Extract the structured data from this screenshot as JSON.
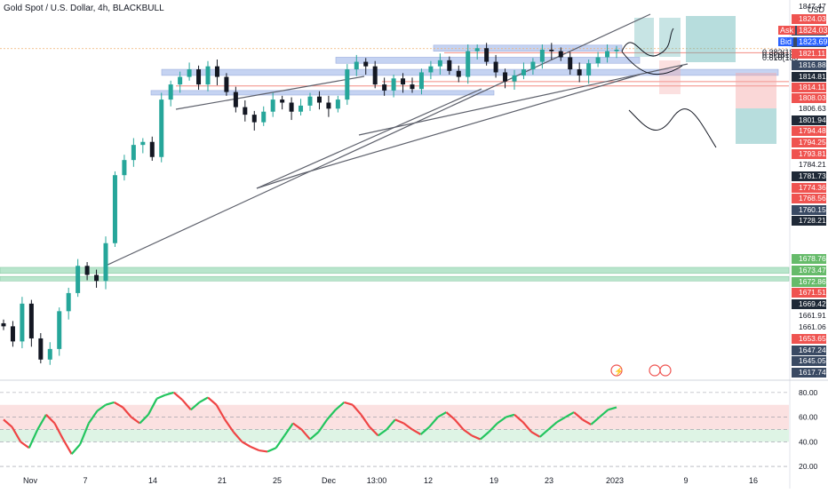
{
  "header": {
    "symbol_title": "Gold Spot / U.S. Dollar, 4h, BLACKBULL",
    "currency": "USD",
    "ask_label": "Ask",
    "ask_value": "1824.03",
    "bid_label": "Bid",
    "bid_value": "1823.69"
  },
  "colors": {
    "up": "#26a69a",
    "down": "#131722",
    "rsi_up": "#22c55e",
    "rsi_down": "#ef4444",
    "support_band": "#7fd1a3",
    "blue_band": "#9fb6ea",
    "red_line": "#f28b82",
    "channel_line": "#5d606b"
  },
  "chart_data": [
    {
      "type": "candlestick",
      "title": "Gold Spot / U.S. Dollar, 4h, BLACKBULL",
      "x_ticks": [
        "Nov",
        "7",
        "14",
        "21",
        "25",
        "Dec",
        "13:00",
        "12",
        "19",
        "23",
        "2023",
        "9",
        "16"
      ],
      "price_axis_labels": [
        "1847.47",
        "1824.03",
        "1823.69",
        "1823.69",
        "1821.11",
        "1816.88",
        "1814.81",
        "1814.11",
        "1808.03",
        "1806.63",
        "1801.94",
        "1794.48",
        "1794.25",
        "1793.81",
        "1784.21",
        "1781.73",
        "1774.36",
        "1768.56",
        "1760.15",
        "1728.21",
        "1678.76",
        "1673.47",
        "1672.86",
        "1671.51",
        "1669.42",
        "1661.91",
        "1661.06",
        "1653.65",
        "1647.24",
        "1645.05",
        "1617.74"
      ],
      "fib_labels": [
        "0.382(181",
        "0.5(181",
        "0.618(180"
      ],
      "close_path": [
        1640,
        1630,
        1655,
        1632,
        1618,
        1625,
        1650,
        1662,
        1680,
        1674,
        1670,
        1695,
        1740,
        1750,
        1760,
        1762,
        1752,
        1790,
        1800,
        1805,
        1810,
        1800,
        1812,
        1805,
        1795,
        1785,
        1780,
        1775,
        1782,
        1790,
        1788,
        1782,
        1786,
        1792,
        1788,
        1784,
        1790,
        1810,
        1815,
        1812,
        1800,
        1796,
        1804,
        1800,
        1797,
        1808,
        1812,
        1816,
        1809,
        1805,
        1822,
        1824,
        1815,
        1808,
        1802,
        1806,
        1810,
        1815,
        1823,
        1822,
        1818,
        1810,
        1806,
        1814,
        1818,
        1822,
        1823
      ],
      "levels": [
        1678.76,
        1672.86,
        1801.94,
        1794.48,
        1806.63,
        1808.03,
        1816.88,
        1821.11,
        1824.03
      ]
    },
    {
      "type": "line",
      "title": "",
      "y_ticks": [
        "80.00",
        "60.00",
        "40.00",
        "20.00"
      ],
      "ylim": [
        15,
        90
      ],
      "series": [
        {
          "values": [
            58,
            52,
            40,
            35,
            50,
            62,
            55,
            42,
            30,
            38,
            55,
            65,
            70,
            72,
            68,
            60,
            55,
            62,
            75,
            78,
            80,
            74,
            66,
            72,
            76,
            70,
            58,
            48,
            40,
            36,
            33,
            32,
            35,
            45,
            55,
            50,
            42,
            48,
            58,
            66,
            72,
            70,
            62,
            52,
            45,
            50,
            58,
            55,
            50,
            46,
            52,
            60,
            64,
            58,
            50,
            45,
            42,
            48,
            55,
            60,
            62,
            56,
            48,
            44,
            50,
            56,
            60,
            64,
            58,
            54,
            60,
            66,
            68
          ]
        }
      ]
    }
  ]
}
